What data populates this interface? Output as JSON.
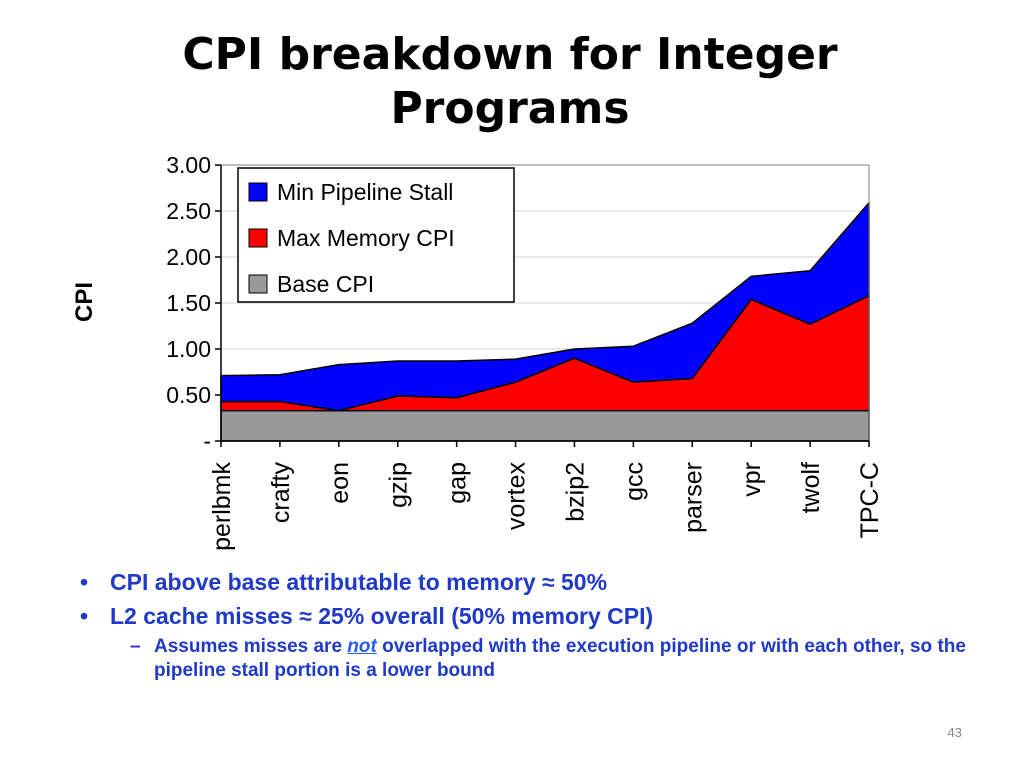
{
  "slide": {
    "title": "CPI breakdown for Integer Programs",
    "bullets": [
      "CPI above base attributable to memory ≈ 50%",
      "L2 cache misses ≈  25% overall (50% memory CPI)"
    ],
    "sub_bullet": {
      "before": "Assumes misses are ",
      "emph": "not",
      "after": " overlapped with the execution pipeline or with each other, so the pipeline stall portion is a lower bound"
    },
    "page_number": "43",
    "colors": {
      "bullet_text": "#1f39c8",
      "emphasis": "#2a5bff"
    }
  },
  "chart_data": {
    "type": "area",
    "stacked": true,
    "categories": [
      "perlbmk",
      "crafty",
      "eon",
      "gzip",
      "gap",
      "vortex",
      "bzip2",
      "gcc",
      "parser",
      "vpr",
      "twolf",
      "TPC-C"
    ],
    "ylabel": "CPI",
    "ylim": [
      0,
      3.0
    ],
    "yticks": [
      0,
      0.5,
      1.0,
      1.5,
      2.0,
      2.5,
      3.0
    ],
    "ytick_labels": [
      "-",
      "0.50",
      "1.00",
      "1.50",
      "2.00",
      "2.50",
      "3.00"
    ],
    "grid": true,
    "legend_position": "top-left",
    "legend_order": [
      "Min Pipeline Stall",
      "Max Memory CPI",
      "Base CPI"
    ],
    "series": [
      {
        "name": "Base CPI",
        "color": "#999999",
        "values": [
          0.33,
          0.33,
          0.33,
          0.33,
          0.33,
          0.33,
          0.33,
          0.33,
          0.33,
          0.33,
          0.33,
          0.33
        ]
      },
      {
        "name": "Max Memory CPI",
        "color": "#ff0000",
        "values": [
          0.1,
          0.1,
          0.0,
          0.16,
          0.14,
          0.31,
          0.57,
          0.31,
          0.35,
          1.21,
          0.94,
          1.25
        ]
      },
      {
        "name": "Min Pipeline Stall",
        "color": "#0000ff",
        "values": [
          0.28,
          0.29,
          0.5,
          0.38,
          0.4,
          0.25,
          0.1,
          0.39,
          0.6,
          0.25,
          0.58,
          1.01
        ]
      }
    ]
  }
}
